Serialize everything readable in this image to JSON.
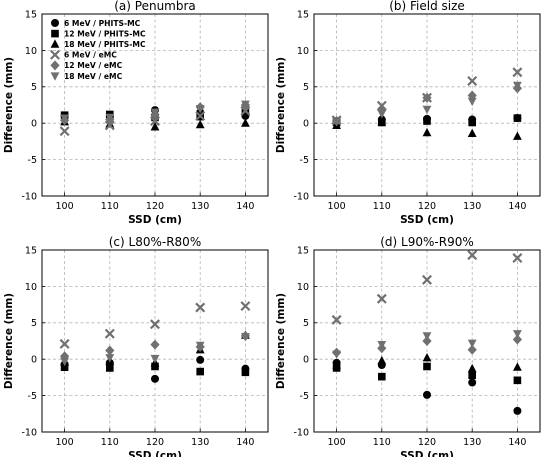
{
  "chart_data": [
    {
      "type": "scatter",
      "title": "(a) Penumbra",
      "xlabel": "SSD (cm)",
      "ylabel": "Difference (mm)",
      "x": [
        100,
        110,
        120,
        130,
        140
      ],
      "xlim": [
        95,
        145
      ],
      "ylim": [
        -10,
        15
      ],
      "xticks": [
        100,
        110,
        120,
        130,
        140
      ],
      "yticks": [
        -10,
        -5,
        0,
        5,
        10,
        15
      ],
      "grid": true,
      "legend": "top-left",
      "series": [
        {
          "name": "6 MeV / PHITS-MC",
          "marker": "circle",
          "color": "#000000",
          "values": [
            1.0,
            0.9,
            1.8,
            1.5,
            1.0
          ]
        },
        {
          "name": "12 MeV / PHITS-MC",
          "marker": "square",
          "color": "#000000",
          "values": [
            1.1,
            1.2,
            0.8,
            0.9,
            1.5
          ]
        },
        {
          "name": "18 MeV / PHITS-MC",
          "marker": "triangle-up",
          "color": "#000000",
          "values": [
            0.2,
            -0.1,
            -0.5,
            -0.2,
            0.0
          ]
        },
        {
          "name": "6 MeV / eMC",
          "marker": "x",
          "color": "#707070",
          "values": [
            -1.1,
            -0.3,
            0.3,
            1.0,
            1.7
          ]
        },
        {
          "name": "12 MeV / eMC",
          "marker": "diamond",
          "color": "#707070",
          "values": [
            0.4,
            0.5,
            1.2,
            2.2,
            2.5
          ]
        },
        {
          "name": "18 MeV / eMC",
          "marker": "triangle-down",
          "color": "#707070",
          "values": [
            0.7,
            0.8,
            1.5,
            2.0,
            2.6
          ]
        }
      ]
    },
    {
      "type": "scatter",
      "title": "(b) Field size",
      "xlabel": "SSD (cm)",
      "ylabel": "Difference (mm)",
      "x": [
        100,
        110,
        120,
        130,
        140
      ],
      "xlim": [
        95,
        145
      ],
      "ylim": [
        -10,
        15
      ],
      "xticks": [
        100,
        110,
        120,
        130,
        140
      ],
      "yticks": [
        -10,
        -5,
        0,
        5,
        10,
        15
      ],
      "grid": true,
      "series": [
        {
          "name": "6 MeV / PHITS-MC",
          "marker": "circle",
          "color": "#000000",
          "values": [
            0.3,
            0.5,
            0.6,
            0.5,
            0.7
          ]
        },
        {
          "name": "12 MeV / PHITS-MC",
          "marker": "square",
          "color": "#000000",
          "values": [
            0.1,
            0.1,
            0.3,
            0.1,
            0.7
          ]
        },
        {
          "name": "18 MeV / PHITS-MC",
          "marker": "triangle-up",
          "color": "#000000",
          "values": [
            -0.3,
            0.2,
            -1.3,
            -1.4,
            -1.8
          ]
        },
        {
          "name": "6 MeV / eMC",
          "marker": "x",
          "color": "#707070",
          "values": [
            0.4,
            2.4,
            3.5,
            5.8,
            7.0
          ]
        },
        {
          "name": "12 MeV / eMC",
          "marker": "diamond",
          "color": "#707070",
          "values": [
            0.3,
            1.8,
            3.5,
            3.8,
            4.8
          ]
        },
        {
          "name": "18 MeV / eMC",
          "marker": "triangle-down",
          "color": "#707070",
          "values": [
            0.2,
            1.3,
            1.9,
            3.0,
            5.2
          ]
        }
      ]
    },
    {
      "type": "scatter",
      "title": "(c) L80%-R80%",
      "xlabel": "SSD (cm)",
      "ylabel": "Difference (mm)",
      "x": [
        100,
        110,
        120,
        130,
        140
      ],
      "xlim": [
        95,
        145
      ],
      "ylim": [
        -10,
        15
      ],
      "xticks": [
        100,
        110,
        120,
        130,
        140
      ],
      "yticks": [
        -10,
        -5,
        0,
        5,
        10,
        15
      ],
      "grid": true,
      "series": [
        {
          "name": "6 MeV / PHITS-MC",
          "marker": "circle",
          "color": "#000000",
          "values": [
            -0.7,
            -0.5,
            -2.7,
            -0.1,
            -1.3
          ]
        },
        {
          "name": "12 MeV / PHITS-MC",
          "marker": "square",
          "color": "#000000",
          "values": [
            -1.1,
            -1.2,
            -1.0,
            -1.7,
            -1.8
          ]
        },
        {
          "name": "18 MeV / PHITS-MC",
          "marker": "triangle-up",
          "color": "#000000",
          "values": [
            -0.4,
            -0.3,
            -0.5,
            1.3,
            3.3
          ]
        },
        {
          "name": "6 MeV / eMC",
          "marker": "x",
          "color": "#707070",
          "values": [
            2.1,
            3.5,
            4.8,
            7.1,
            7.3
          ]
        },
        {
          "name": "12 MeV / eMC",
          "marker": "diamond",
          "color": "#707070",
          "values": [
            0.4,
            1.2,
            2.0,
            1.7,
            3.2
          ]
        },
        {
          "name": "18 MeV / eMC",
          "marker": "triangle-down",
          "color": "#707070",
          "values": [
            -0.3,
            0.2,
            0.1,
            1.9,
            3.1
          ]
        }
      ]
    },
    {
      "type": "scatter",
      "title": "(d) L90%-R90%",
      "xlabel": "SSD (cm)",
      "ylabel": "Difference (mm)",
      "x": [
        100,
        110,
        120,
        130,
        140
      ],
      "xlim": [
        95,
        145
      ],
      "ylim": [
        -10,
        15
      ],
      "xticks": [
        100,
        110,
        120,
        130,
        140
      ],
      "yticks": [
        -10,
        -5,
        0,
        5,
        10,
        15
      ],
      "grid": true,
      "series": [
        {
          "name": "6 MeV / PHITS-MC",
          "marker": "circle",
          "color": "#000000",
          "values": [
            -0.5,
            -0.8,
            -4.9,
            -3.2,
            -7.1
          ]
        },
        {
          "name": "12 MeV / PHITS-MC",
          "marker": "square",
          "color": "#000000",
          "values": [
            -1.2,
            -2.4,
            -1.0,
            -2.2,
            -2.9
          ]
        },
        {
          "name": "18 MeV / PHITS-MC",
          "marker": "triangle-up",
          "color": "#000000",
          "values": [
            -0.8,
            -0.2,
            0.2,
            -1.3,
            -1.1
          ]
        },
        {
          "name": "6 MeV / eMC",
          "marker": "x",
          "color": "#707070",
          "values": [
            5.4,
            8.3,
            10.9,
            14.3,
            13.9
          ]
        },
        {
          "name": "12 MeV / eMC",
          "marker": "diamond",
          "color": "#707070",
          "values": [
            0.9,
            1.5,
            2.5,
            1.3,
            2.7
          ]
        },
        {
          "name": "18 MeV / eMC",
          "marker": "triangle-down",
          "color": "#707070",
          "values": [
            0.7,
            2.0,
            3.2,
            2.2,
            3.5
          ]
        }
      ]
    }
  ]
}
